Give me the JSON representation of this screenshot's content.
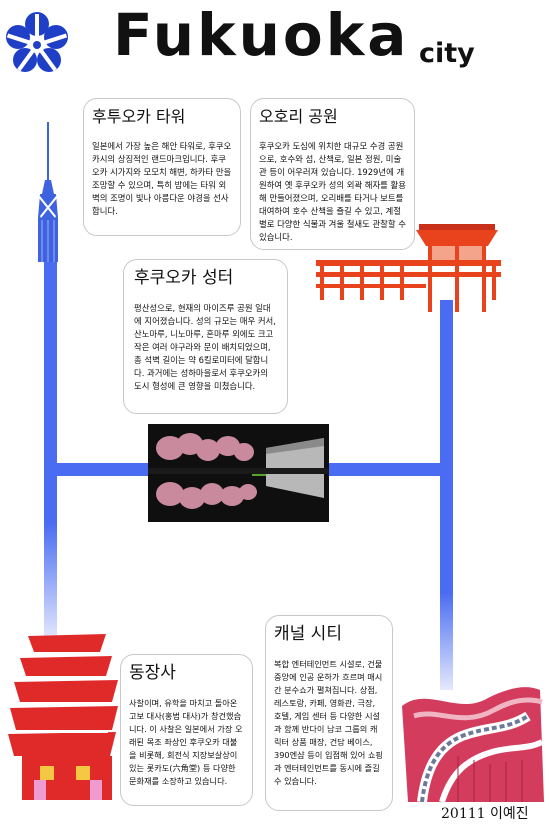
{
  "header": {
    "title": "Fukuoka",
    "subtitle": "city"
  },
  "colors": {
    "road": "#4a6cf2",
    "tower": "#3f63e0",
    "pavilion": "#e8431c",
    "pagoda": "#e02a2a",
    "logo": "#1f3fc7",
    "canal": "#d33c5d"
  },
  "icons": [
    "city-emblem-icon",
    "fukuoka-tower-icon",
    "ohori-pavilion-icon",
    "tochoji-pagoda-icon",
    "canal-city-icon",
    "castle-photo"
  ],
  "cards": {
    "tower": {
      "title": "후투오카 타워",
      "body": "일본에서 가장 높은 해안 타워로, 후쿠오카시의 상징적인 랜드마크입니다. 후쿠오카 시가지와 모모치 해변, 하카타 만을 조망할 수 있으며, 특히 밤에는 타워 외벽의 조명이 빛나 아름다운 야경을 선사합니다."
    },
    "ohori": {
      "title": "오호리 공원",
      "body": "후쿠오카 도심에 위치한 대규모 수경 공원으로, 호수와 섬, 산책로, 일본 정원, 미술관 등이 어우러져 있습니다. 1929년에 개원하여 옛 후쿠오카 성의 외곽 해자를 활용해 만들어졌으며, 오리배를 타거나 보트를 대여하여 호수 산책을 즐길 수 있고, 계절별로 다양한 식물과 겨울 철새도 관찰할 수 있습니다."
    },
    "castle": {
      "title": "후쿠오카 성터",
      "body": "평산성으로, 현재의 마이즈루 공원 일대에 지어졌습니다. 성의 규모는 매우 커서, 산노마루, 니노마루, 혼마루 외에도 크고 작은 여러 야구라와 문이 배치되었으며, 총 석벽 길이는 약 6킬로미터에 달합니다. 과거에는 성하마을로서 후쿠오카의 도시 형성에 큰 영향을 미쳤습니다."
    },
    "tochoji": {
      "title": "동장사",
      "body": "사찰이며, 유학을 마치고 돌아온 고보 대사(홍법 대사)가 창건했습니다. 이 사찰은 일본에서 가장 오래된 목조 좌상인 후쿠오카 대불을 비롯해, 회전식 지장보살상이 있는 롯카도(六角堂) 등 다양한 문화재를 소장하고 있습니다."
    },
    "canal": {
      "title": "캐널 시티",
      "body": "복합 엔터테인먼트 시설로, 건물 중앙에 인공 운하가 흐르며 매시간 분수쇼가 펼쳐집니다. 상점, 레스토랑, 카페, 영화관, 극장, 호텔, 게임 센터 등 다양한 시설과 함께 반다이 남코 그룹의 캐릭터 상품 매장, 건담 베이스, 390엔샵 등이 입점해 있어 쇼핑과 엔터테인먼트를 동시에 즐길 수 있습니다."
    }
  },
  "credit": "20111 이예진"
}
